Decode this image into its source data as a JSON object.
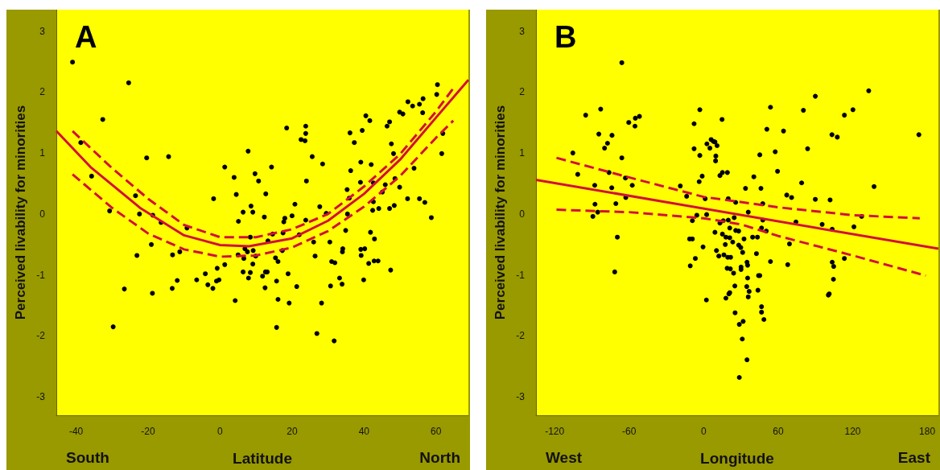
{
  "chart_data": [
    {
      "type": "scatter",
      "title": "A",
      "xlabel": "Latitude",
      "ylabel": "Perceived livability for minorities",
      "annotations": [
        "South",
        "North"
      ],
      "xlim": [
        -45.5,
        69
      ],
      "ylim": [
        -3.3,
        3.35
      ],
      "xticks": [
        -40,
        -20,
        0,
        20,
        40,
        60
      ],
      "yticks": [
        -3,
        -2,
        -1,
        0,
        1,
        2,
        3
      ],
      "series": [
        {
          "type": "scatter",
          "marker": "circle",
          "color": "#000000",
          "x": [
            -41,
            -25.4,
            -32.6,
            -38.7,
            -35.7,
            -20.4,
            -14.3,
            -30.7,
            -23.5,
            -22.4,
            -18.7,
            -16.4,
            -9.2,
            -19.1,
            -23.1,
            -13.2,
            -11.2,
            -26.6,
            -18.8,
            -29.7,
            -13.3,
            -11.9,
            -6.5,
            -4.1,
            -3.4,
            -2.0,
            -0.8,
            -1.0,
            -0.3,
            1.3,
            -1.8,
            1.3,
            3.9,
            4.5,
            5.1,
            6.4,
            4.2,
            7.8,
            9.7,
            10.7,
            8.6,
            9.1,
            12.3,
            12.7,
            5.0,
            6.6,
            6.9,
            7.6,
            8.4,
            9.2,
            9.9,
            9.1,
            6.4,
            8.4,
            7.9,
            11.8,
            12.6,
            12.5,
            14.3,
            18.5,
            22.5,
            23.6,
            23.8,
            23.8,
            25.6,
            28.5,
            24.0,
            20.8,
            20.0,
            18.0,
            17.7,
            14.6,
            13.3,
            17.5,
            22.0,
            23.8,
            26.0,
            27.7,
            29.5,
            30.5,
            26.4,
            15.4,
            16.1,
            17.3,
            13.1,
            15.7,
            18.9,
            21.3,
            16.1,
            19.2,
            15.7,
            28.2,
            26.9,
            31.7,
            30.7,
            31.0,
            31.9,
            33.2,
            33.9,
            34.0,
            34.1,
            34.9,
            35.4,
            35.9,
            35.3,
            36.3,
            36.1,
            37.3,
            39.1,
            39.0,
            39.5,
            40.5,
            41.6,
            42.0,
            42.6,
            42.6,
            42.4,
            44.1,
            45.1,
            45.9,
            47.1,
            48.4,
            48.6,
            49.9,
            48.2,
            47.6,
            46.4,
            47.1,
            49.9,
            50.8,
            52.2,
            53.5,
            55.4,
            56.4,
            56.3,
            60.4,
            60.2,
            61.9,
            61.6,
            53.9,
            52.1,
            55.4,
            56.9,
            58.7,
            47.4,
            39.9,
            39.2,
            39.1,
            40.2,
            41.3,
            42.8,
            43.9,
            41.8,
            42.9
          ],
          "values": [
            2.49,
            2.15,
            1.55,
            1.17,
            0.62,
            0.92,
            0.94,
            0.05,
            0.3,
            0.0,
            -0.02,
            -0.14,
            -0.23,
            -0.5,
            -0.68,
            -0.67,
            -0.62,
            -1.23,
            -1.3,
            -1.85,
            -1.22,
            -1.09,
            -1.08,
            -0.98,
            -1.16,
            -1.22,
            -0.89,
            -1.1,
            -1.08,
            -0.83,
            0.25,
            0.77,
            0.6,
            0.32,
            -0.12,
            0.03,
            -1.42,
            1.03,
            0.66,
            0.54,
            0.13,
            0.03,
            -0.05,
            0.33,
            -0.67,
            -0.73,
            -0.57,
            -0.62,
            -0.38,
            -0.6,
            -0.69,
            -0.82,
            -0.95,
            -0.96,
            -1.05,
            -1.02,
            -0.95,
            -1.21,
            0.77,
            1.41,
            1.22,
            1.2,
            1.44,
            1.32,
            0.94,
            0.82,
            0.54,
            0.16,
            -0.03,
            -0.07,
            -0.13,
            -0.33,
            -0.44,
            -0.31,
            -0.34,
            -0.1,
            -0.46,
            0.12,
            0.01,
            -0.46,
            -0.69,
            -0.72,
            -0.78,
            -0.6,
            -0.95,
            -1.1,
            -0.98,
            -1.19,
            -1.4,
            -1.46,
            -1.86,
            -1.46,
            -1.96,
            -2.08,
            -1.18,
            -0.78,
            -0.8,
            -1.05,
            -1.15,
            -0.62,
            -0.57,
            -0.27,
            0.0,
            0.26,
            0.4,
            0.71,
            1.33,
            1.17,
            0.85,
            0.52,
            1.37,
            1.61,
            1.53,
            0.81,
            0.51,
            0.2,
            0.06,
            0.09,
            0.36,
            0.48,
            0.09,
            0.14,
            0.58,
            0.44,
            0.99,
            1.15,
            1.44,
            1.51,
            1.67,
            1.64,
            1.84,
            1.77,
            1.8,
            1.89,
            1.66,
            2.12,
            1.96,
            1.32,
            0.99,
            0.75,
            0.25,
            0.25,
            0.19,
            -0.06,
            -0.92,
            -1.08,
            -0.68,
            -0.58,
            -0.57,
            -0.81,
            -0.77,
            -0.77,
            -0.3,
            -0.41
          ]
        },
        {
          "type": "line",
          "marker": "none",
          "line_style": "solid",
          "color": "#d2103c",
          "x": [
            -45.5,
            -36,
            -22,
            -10,
            0,
            8,
            20,
            30,
            40,
            50,
            60,
            69
          ],
          "values": [
            1.36,
            0.77,
            0.09,
            -0.35,
            -0.51,
            -0.53,
            -0.4,
            -0.11,
            0.33,
            0.89,
            1.58,
            2.2
          ]
        },
        {
          "type": "line",
          "marker": "none",
          "line_style": "dashed",
          "color": "#d2103c",
          "x": [
            -41,
            -30,
            -20,
            -10,
            0,
            10,
            20,
            30,
            40,
            50,
            60,
            64.8
          ],
          "values": [
            1.36,
            0.75,
            0.25,
            -0.18,
            -0.38,
            -0.38,
            -0.25,
            0.0,
            0.45,
            0.98,
            1.68,
            2.06
          ]
        },
        {
          "type": "line",
          "marker": "none",
          "line_style": "dashed",
          "color": "#d2103c",
          "x": [
            -41,
            -30,
            -20,
            -10,
            0,
            10,
            20,
            30,
            40,
            50,
            60,
            64.8
          ],
          "values": [
            0.65,
            0.1,
            -0.32,
            -0.58,
            -0.7,
            -0.68,
            -0.55,
            -0.28,
            0.12,
            0.62,
            1.25,
            1.53
          ]
        }
      ]
    },
    {
      "type": "scatter",
      "title": "B",
      "xlabel": "Longitude",
      "ylabel": "Perceived livability for minorities",
      "annotations": [
        "West",
        "East"
      ],
      "xlim": [
        -135,
        189
      ],
      "ylim": [
        -3.3,
        3.35
      ],
      "xticks": [
        -120,
        -60,
        0,
        60,
        120,
        180
      ],
      "yticks": [
        -3,
        -2,
        -1,
        0,
        1,
        2,
        3
      ],
      "series": [
        {
          "type": "scatter",
          "marker": "circle",
          "color": "#000000",
          "x": [
            -65.9,
            -82.9,
            -95.0,
            -84.4,
            -73.8,
            -77.4,
            -79.8,
            -105.3,
            -65.9,
            -60.3,
            -55.3,
            -55.0,
            -51.7,
            -101.4,
            -76.2,
            -87.7,
            -74.0,
            -63.0,
            -57.5,
            -62.7,
            -70.7,
            -87.5,
            -85.3,
            -89.2,
            -69.5,
            -71.6,
            -18.8,
            -13.7,
            -3.1,
            -7.7,
            -7.7,
            -3.1,
            -1.2,
            -3.6,
            1.2,
            2.4,
            -5.5,
            -9.1,
            -11.3,
            -9.1,
            -0.5,
            -6.7,
            -10.8,
            2.2,
            2.6,
            5.0,
            6.0,
            7.9,
            9.1,
            10.8,
            9.8,
            9.6,
            14.8,
            13.1,
            15.1,
            19.1,
            19.8,
            25.8,
            33.7,
            35.9,
            24.6,
            19.8,
            13.1,
            15.8,
            9.1,
            15.1,
            17.9,
            21.0,
            25.8,
            28.2,
            32.5,
            21.0,
            23.4,
            17.4,
            28.2,
            29.9,
            31.4,
            10.3,
            12.2,
            16.3,
            19.4,
            21.7,
            18.9,
            21.5,
            24.1,
            30.1,
            30.1,
            34.9,
            35.4,
            35.4,
            34.7,
            36.6,
            35.9,
            25.1,
            21.0,
            20.3,
            17.9,
            25.3,
            28.7,
            31.8,
            31.1,
            34.9,
            28.7,
            40.4,
            46.1,
            45.2,
            50.9,
            53.8,
            57.6,
            59.5,
            47.6,
            47.6,
            46.6,
            50.4,
            39.4,
            43.3,
            42.5,
            44.2,
            45.2,
            43.7,
            46.6,
            46.6,
            48.5,
            53.8,
            64.3,
            66.9,
            70.8,
            69.1,
            67.7,
            74.3,
            78.9,
            80.3,
            83.7,
            89.9,
            89.9,
            95.4,
            101.8,
            103.3,
            107.6,
            103.5,
            103.5,
            104.7,
            104.5,
            101.1,
            100.4,
            113.3,
            120.2,
            121.0,
            113.3,
            127.2,
            132.9,
            137.2,
            173.3
          ],
          "values": [
            2.48,
            1.72,
            1.62,
            1.31,
            1.29,
            1.16,
            1.08,
            1.0,
            0.92,
            1.5,
            1.44,
            1.57,
            1.6,
            0.65,
            0.68,
            0.47,
            0.43,
            0.59,
            0.47,
            0.27,
            0.17,
            0.16,
            0.03,
            -0.04,
            -0.38,
            -0.95,
            0.46,
            0.29,
            1.71,
            1.48,
            1.07,
            0.96,
            0.62,
            0.53,
            0.25,
            -0.01,
            -0.02,
            -0.11,
            -0.41,
            -0.41,
            -0.54,
            -0.73,
            -0.85,
            -1.41,
            1.15,
            1.08,
            1.22,
            1.19,
            1.18,
            1.12,
            0.95,
            0.87,
            1.55,
            0.63,
            0.68,
            0.68,
            0.25,
            0.19,
            0.42,
            0.03,
            -0.06,
            -0.1,
            -0.15,
            -0.11,
            -0.3,
            -0.33,
            -0.38,
            -0.23,
            -0.27,
            -0.28,
            -0.41,
            -0.39,
            -0.46,
            -0.5,
            -0.51,
            -0.55,
            -0.63,
            -0.6,
            -0.69,
            -0.67,
            -0.71,
            -0.71,
            -0.89,
            -0.9,
            -0.97,
            -0.87,
            -0.91,
            -0.79,
            -0.84,
            -1.05,
            -1.19,
            -1.27,
            -1.36,
            -1.18,
            -1.29,
            -1.31,
            -1.38,
            -1.62,
            -1.81,
            -1.76,
            -2.05,
            -2.39,
            -2.68,
            0.61,
            0.42,
            0.97,
            1.39,
            1.75,
            1.02,
            0.7,
            0.17,
            -0.1,
            -0.23,
            -0.28,
            -0.38,
            -0.38,
            -0.65,
            -1.01,
            -1.01,
            -1.25,
            -1.52,
            -1.61,
            -1.73,
            -0.78,
            1.36,
            0.31,
            0.27,
            -0.49,
            -0.83,
            -0.13,
            0.51,
            1.7,
            1.07,
            1.93,
            0.24,
            -0.17,
            0.23,
            1.3,
            1.26,
            -0.25,
            -0.79,
            -0.86,
            -1.07,
            -1.31,
            -1.33,
            1.62,
            1.71,
            -0.21,
            -0.73,
            -0.04,
            2.02,
            0.45,
            1.3
          ]
        },
        {
          "type": "line",
          "marker": "none",
          "line_style": "solid",
          "color": "#d2103c",
          "x": [
            -135,
            189
          ],
          "values": [
            0.56,
            -0.57
          ]
        },
        {
          "type": "line",
          "marker": "none",
          "line_style": "dashed",
          "color": "#d2103c",
          "x": [
            -118.5,
            -60,
            0,
            60,
            120,
            174
          ],
          "values": [
            0.92,
            0.6,
            0.28,
            0.11,
            -0.02,
            -0.07
          ]
        },
        {
          "type": "line",
          "marker": "none",
          "line_style": "dashed",
          "color": "#d2103c",
          "x": [
            -118.5,
            -60,
            0,
            30,
            60,
            120,
            178.8
          ],
          "values": [
            0.07,
            0.03,
            -0.07,
            -0.17,
            -0.36,
            -0.68,
            -1.01
          ]
        }
      ]
    }
  ]
}
